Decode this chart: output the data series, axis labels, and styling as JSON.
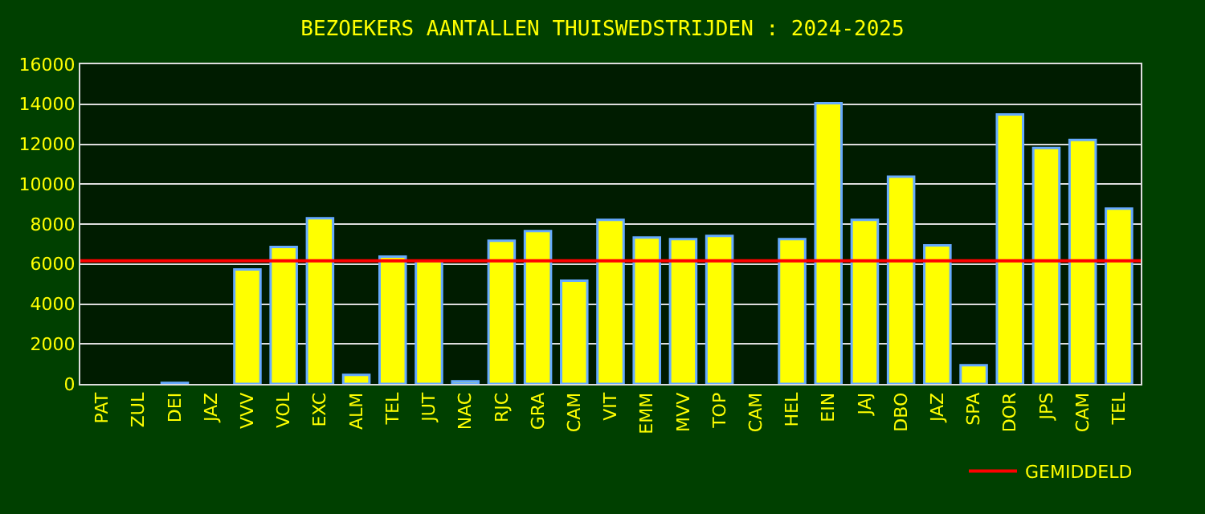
{
  "chart_data": {
    "type": "bar",
    "title": "BEZOEKERS AANTALLEN THUISWEDSTRIJDEN : 2024-2025",
    "categories": [
      "PAT",
      "ZUL",
      "DEI",
      "JAZ",
      "VVV",
      "VOL",
      "EXC",
      "ALM",
      "TEL",
      "JUT",
      "NAC",
      "RJC",
      "GRA",
      "CAM",
      "VIT",
      "EMM",
      "MVV",
      "TOP",
      "CAM",
      "HEL",
      "EIN",
      "JAJ",
      "DBO",
      "JAZ",
      "SPA",
      "DOR",
      "JPS",
      "CAM",
      "TEL"
    ],
    "values": [
      null,
      null,
      50,
      null,
      5730,
      6850,
      8290,
      450,
      6370,
      6160,
      130,
      7170,
      7650,
      5170,
      8210,
      7330,
      7250,
      7410,
      null,
      7250,
      14050,
      8210,
      10370,
      6930,
      930,
      13490,
      11810,
      12210,
      8770
    ],
    "color": "#ffff00",
    "ylim": [
      0,
      16000
    ],
    "yticks": [
      0,
      2000,
      4000,
      6000,
      8000,
      10000,
      12000,
      14000,
      16000
    ],
    "grid": "y",
    "ref_lines": [
      {
        "axis": "y",
        "value": 6160,
        "label": "GEMIDDELD",
        "color": "#ff0000"
      }
    ],
    "legend": "bottom right"
  }
}
